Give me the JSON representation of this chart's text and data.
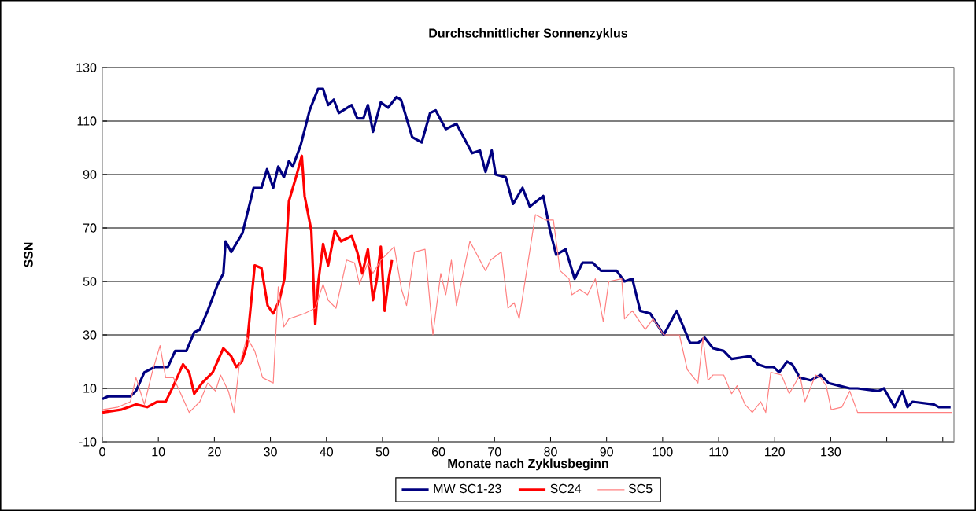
{
  "chart_data": {
    "type": "line",
    "title": "Durchschnittlicher Sonnenzyklus",
    "xlabel": "Monate nach Zyklusbeginn",
    "ylabel": "SSN",
    "xlim": [
      0,
      152
    ],
    "ylim": [
      -10,
      130
    ],
    "xticks": [
      0,
      10,
      20,
      30,
      40,
      50,
      60,
      70,
      80,
      90,
      100,
      110,
      120,
      130,
      {
        "value": 140,
        "label": null
      },
      {
        "value": 150,
        "label": null
      }
    ],
    "yticks": [
      -10,
      10,
      30,
      50,
      70,
      90,
      110,
      130
    ],
    "grid": "y",
    "legend": "bottom",
    "series": [
      {
        "name": "MW SC1-23",
        "color": "#000080",
        "x": [
          0,
          1,
          5,
          6,
          7.5,
          9.4,
          11.7,
          13,
          15,
          16.4,
          17.4,
          18.8,
          20.6,
          21.6,
          22,
          23,
          25,
          27,
          28.4,
          29.4,
          30.5,
          31.4,
          32.4,
          33.3,
          34,
          35.4,
          37,
          38.5,
          39.4,
          40.3,
          41.3,
          42.2,
          44.5,
          45.5,
          46.6,
          47.4,
          48.3,
          49.7,
          51,
          52.5,
          53.3,
          55.3,
          57,
          58.5,
          59.5,
          61.3,
          63.2,
          66,
          67.4,
          68.4,
          69.5,
          70.2,
          72,
          73.3,
          75,
          76.3,
          78.7,
          79.9,
          81,
          82.7,
          84.3,
          85.7,
          87.5,
          89,
          91.8,
          93.2,
          94.6,
          96,
          97.8,
          100.2,
          102.5,
          104.9,
          106.3,
          107.5,
          109,
          110.9,
          112.3,
          115.6,
          117,
          118.4,
          119.8,
          120.8,
          122.2,
          123.1,
          124.5,
          126.4,
          128.2,
          129.6,
          131.5,
          133.4,
          134.8,
          138.5,
          139.5,
          141.4,
          142.8,
          143.7,
          144.6,
          148.4,
          149.3,
          151.4
        ],
        "values": [
          6,
          7,
          7,
          9,
          16,
          18,
          18,
          24,
          24,
          31,
          32,
          39,
          49,
          53,
          65,
          61,
          68,
          85,
          85,
          92,
          85,
          93,
          89,
          95,
          93,
          101,
          114,
          122,
          122,
          116,
          118,
          113,
          116,
          111,
          111,
          116,
          106,
          117,
          115,
          119,
          118,
          104,
          102,
          113,
          114,
          107,
          109,
          98,
          99,
          91,
          99,
          90,
          89,
          79,
          85,
          78,
          82,
          69,
          60,
          62,
          51,
          57,
          57,
          54,
          54,
          50,
          51,
          39,
          38,
          30,
          39,
          27,
          27,
          29,
          25,
          24,
          21,
          22,
          19,
          18,
          18,
          16,
          20,
          19,
          14,
          13,
          15,
          12,
          11,
          10,
          10,
          9,
          10,
          3,
          9,
          3,
          5,
          4,
          3,
          3
        ]
      },
      {
        "name": "SC24",
        "color": "#ff0000",
        "x": [
          0,
          3.3,
          6,
          8,
          9.8,
          11.3,
          12.7,
          14.4,
          15.5,
          16.4,
          17.8,
          19.7,
          21.6,
          23,
          23.9,
          24.9,
          25.8,
          27.2,
          28.4,
          29.5,
          30.5,
          31.6,
          32.5,
          33.3,
          34.7,
          35.6,
          36.1,
          37.3,
          38,
          38.5,
          39.4,
          40.3,
          41.5,
          42.6,
          44.5,
          45.5,
          46.4,
          47.4,
          48.3,
          49,
          49.7,
          50.4,
          51.1,
          51.7
        ],
        "values": [
          1,
          2,
          4,
          3,
          5,
          5,
          11,
          19,
          16,
          8,
          12,
          16,
          25,
          22,
          18,
          20,
          26,
          56,
          55,
          41,
          38,
          43,
          51,
          80,
          90,
          97,
          82,
          69,
          34,
          49,
          64,
          56,
          69,
          65,
          67,
          61,
          53,
          62,
          43,
          51,
          63,
          39,
          51,
          58
        ]
      },
      {
        "name": "SC5",
        "color": "#ff8080",
        "x": [
          0,
          2.8,
          5,
          6,
          7.5,
          8.9,
          10.3,
          11.3,
          12.7,
          14,
          15.5,
          17.4,
          18.8,
          20.2,
          21.1,
          22.5,
          23.5,
          24.4,
          25.8,
          27.2,
          28.6,
          30.5,
          31.4,
          32.4,
          33.3,
          34.7,
          36.1,
          38,
          39.4,
          40.3,
          41.7,
          43.6,
          45,
          45.9,
          47.4,
          48.3,
          49.7,
          52.1,
          53.4,
          54.3,
          55.7,
          57.6,
          59,
          60.4,
          61.3,
          62.3,
          63.2,
          65.6,
          68.4,
          69.3,
          71.2,
          72.4,
          73.5,
          74.4,
          77.3,
          79.1,
          80.5,
          81.7,
          83.3,
          83.8,
          85.2,
          86.6,
          88,
          89.4,
          90.4,
          92.7,
          93.2,
          94.6,
          96.9,
          98.3,
          100.2,
          103,
          104.4,
          106.3,
          107.2,
          108.1,
          109,
          110.9,
          112.3,
          113.3,
          114.7,
          116,
          117.5,
          118.4,
          119.3,
          121.2,
          122.6,
          124.5,
          125.4,
          127.3,
          128.2,
          129.2,
          130.1,
          132,
          133.4,
          134.8,
          151.6
        ],
        "values": [
          2,
          3,
          5,
          14,
          4,
          16,
          26,
          14,
          14,
          8,
          1,
          5,
          12,
          9,
          15,
          9,
          1,
          18,
          29,
          24,
          14,
          12,
          48,
          33,
          36,
          37,
          38,
          40,
          49,
          43,
          40,
          58,
          57,
          49,
          57,
          53,
          58,
          63,
          47,
          41,
          61,
          62,
          30,
          53,
          45,
          58,
          41,
          65,
          54,
          58,
          61,
          40,
          42,
          36,
          75,
          73,
          73,
          54,
          51,
          45,
          47,
          45,
          51,
          35,
          50,
          51,
          36,
          39,
          32,
          36,
          30,
          30,
          17,
          12,
          29,
          13,
          15,
          15,
          8,
          11,
          4,
          1,
          5,
          1,
          16,
          15,
          8,
          15,
          5,
          15,
          14,
          11,
          2,
          3,
          9,
          1,
          1
        ]
      }
    ]
  }
}
